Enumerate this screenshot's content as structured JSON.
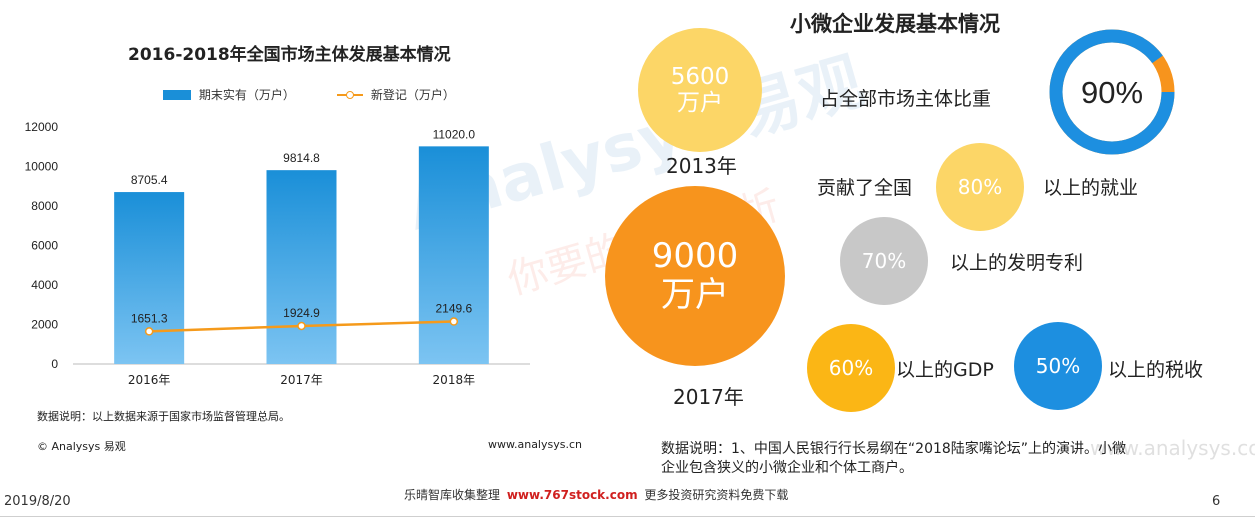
{
  "left_panel": {
    "title": "2016-2018年全国市场主体发展基本情况",
    "legend_bar": "期末实有（万户）",
    "legend_line": "新登记（万户）",
    "note": "数据说明：以上数据来源于国家市场监督管理总局。",
    "copyright": "© Analysys 易观",
    "website": "www.analysys.cn"
  },
  "chart_data": {
    "type": "bar",
    "categories": [
      "2016年",
      "2017年",
      "2018年"
    ],
    "series": [
      {
        "name": "期末实有（万户）",
        "type": "bar",
        "values": [
          8705.4,
          9814.8,
          11020.0
        ],
        "labels": [
          "8705.4",
          "9814.8",
          "11020.0"
        ]
      },
      {
        "name": "新登记（万户）",
        "type": "line",
        "values": [
          1651.3,
          1924.9,
          2149.6
        ],
        "labels": [
          "1651.3",
          "1924.9",
          "2149.6"
        ]
      }
    ],
    "yticks": [
      "0",
      "2000",
      "4000",
      "6000",
      "8000",
      "10000",
      "12000"
    ],
    "ylim": [
      0,
      12000
    ],
    "colors": {
      "bar": "#1a8fd8",
      "line": "#f59a1b"
    },
    "grid": false,
    "legend_position": "top"
  },
  "right_panel": {
    "title": "小微企业发展基本情况",
    "circle_2013": {
      "line1": "5600",
      "line2": "万户",
      "year": "2013年",
      "color": "#fcd667"
    },
    "circle_2017": {
      "line1": "9000",
      "line2": "万户",
      "year": "2017年",
      "color": "#f7941d"
    },
    "share": {
      "label": "占全部市场主体比重",
      "value": "90%",
      "fraction": 0.9,
      "ring_color": "#1d8fe0",
      "rest_color": "#f7941d"
    },
    "stats": [
      {
        "prefix": "贡献了全国",
        "value": "80%",
        "suffix": "以上的就业",
        "color": "#fcd667"
      },
      {
        "value": "70%",
        "suffix": "以上的发明专利",
        "color": "#c8c8c8"
      },
      {
        "value": "60%",
        "suffix": "以上的GDP",
        "color": "#fbb615"
      },
      {
        "value": "50%",
        "suffix": "以上的税收",
        "color": "#1d8fe0"
      }
    ],
    "note_line1": "数据说明：1、中国人民银行行长易纲在“2018陆家嘴论坛”上的演讲。小微",
    "note_line2": "企业包含狭义的小微企业和个体工商户。"
  },
  "footer": {
    "date": "2019/8/20",
    "center_prefix": "乐晴智库收集整理",
    "center_link": "www.767stock.com",
    "center_suffix": "更多投资研究资料免费下载",
    "page": "6"
  },
  "watermark": {
    "brand": "Analysys 易观",
    "slogan": "你要的数据分析",
    "side": "www.analysys.com"
  }
}
